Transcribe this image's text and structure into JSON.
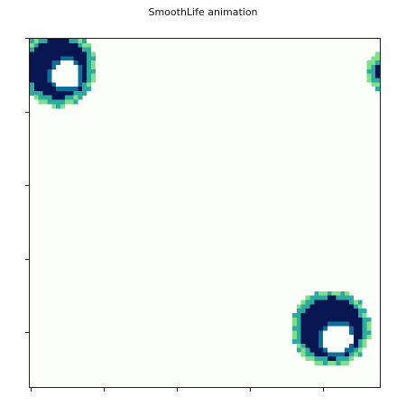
{
  "figure": {
    "title": "SmoothLife animation"
  },
  "grid": {
    "cells": 80,
    "background": "#fcfefa",
    "colormap": [
      "#fcfefa",
      "#7fe08a",
      "#2ea9a0",
      "#0b6f98",
      "#071550"
    ]
  },
  "creatures": [
    {
      "label": "top-left",
      "center": [
        6.5,
        6.8
      ],
      "outer_radius": 7.8,
      "hole_center": [
        8.3,
        8.2
      ],
      "hole_radius": 3.2
    },
    {
      "label": "bottom-right",
      "center": [
        68.8,
        66.5
      ],
      "outer_radius": 8.0,
      "hole_center": [
        70.3,
        68.8
      ],
      "hole_radius": 3.3
    },
    {
      "label": "right-edge",
      "center": [
        81.5,
        7.5
      ],
      "outer_radius": 3.6,
      "hole_center": [
        83.5,
        7.5
      ],
      "hole_radius": 1.0
    }
  ],
  "axes": {
    "x_ticks": 5,
    "y_ticks": 5
  }
}
